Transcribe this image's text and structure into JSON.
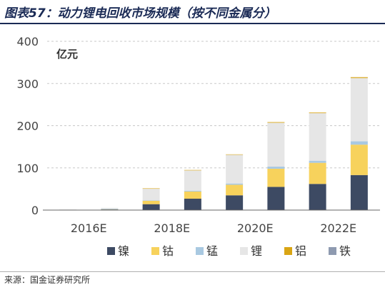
{
  "header": {
    "title": "图表57：动力锂电回收市场规模（按不同金属分）"
  },
  "footer": {
    "source": "来源：国金证券研究所"
  },
  "chart_data": {
    "type": "bar",
    "stacked": true,
    "unit_label": "亿元",
    "x": [
      2016,
      2017,
      2018,
      2019,
      2020,
      2021,
      2022,
      2023
    ],
    "x_tick_labels": [
      "2016E",
      "2018E",
      "2020E",
      "2022E"
    ],
    "x_tick_positions": [
      2016,
      2018,
      2020,
      2022
    ],
    "ylim": [
      0,
      400
    ],
    "y_ticks": [
      0,
      100,
      200,
      300,
      400
    ],
    "grid": true,
    "legend_position": "bottom",
    "series": [
      {
        "name": "镍",
        "color": "#3d4a63",
        "values": [
          0.5,
          1.5,
          14,
          27,
          35,
          55,
          62,
          83
        ]
      },
      {
        "name": "钴",
        "color": "#f7d25c",
        "values": [
          0.3,
          1,
          8,
          17,
          25,
          43,
          50,
          72
        ]
      },
      {
        "name": "锰",
        "color": "#a9c9e1",
        "values": [
          0.1,
          0.3,
          1,
          2,
          3,
          5,
          5,
          8
        ]
      },
      {
        "name": "锂",
        "color": "#e6e6e6",
        "values": [
          0.6,
          2.5,
          28,
          48,
          68,
          104,
          113,
          150
        ]
      },
      {
        "name": "铝",
        "color": "#d9a514",
        "values": [
          0,
          0,
          0.5,
          1,
          1,
          1.5,
          1.5,
          2
        ]
      },
      {
        "name": "铁",
        "color": "#8e9ab0",
        "values": [
          0,
          0,
          0,
          0,
          0,
          0,
          0,
          0
        ]
      }
    ]
  }
}
